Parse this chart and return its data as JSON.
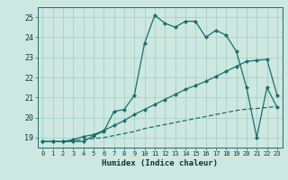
{
  "xlabel": "Humidex (Indice chaleur)",
  "bg_color": "#cde8e0",
  "grid_color": "#a8cfc7",
  "line_color": "#1a6e6e",
  "xlim": [
    -0.5,
    23.5
  ],
  "ylim": [
    18.5,
    25.5
  ],
  "yticks": [
    19,
    20,
    21,
    22,
    23,
    24,
    25
  ],
  "xticks": [
    0,
    1,
    2,
    3,
    4,
    5,
    6,
    7,
    8,
    9,
    10,
    11,
    12,
    13,
    14,
    15,
    16,
    17,
    18,
    19,
    20,
    21,
    22,
    23
  ],
  "line1_x": [
    0,
    1,
    2,
    3,
    4,
    5,
    6,
    7,
    8,
    9,
    10,
    11,
    12,
    13,
    14,
    15,
    16,
    17,
    18,
    19,
    20,
    21,
    22,
    23
  ],
  "line1_y": [
    18.8,
    18.8,
    18.8,
    18.8,
    18.8,
    19.1,
    19.3,
    20.3,
    20.4,
    21.1,
    23.7,
    25.1,
    24.7,
    24.5,
    24.8,
    24.8,
    24.0,
    24.35,
    24.1,
    23.3,
    21.5,
    19.0,
    21.5,
    20.5
  ],
  "line2_x": [
    0,
    1,
    2,
    3,
    4,
    5,
    6,
    7,
    8,
    9,
    10,
    11,
    12,
    13,
    14,
    15,
    16,
    17,
    18,
    19,
    20,
    21,
    22,
    23
  ],
  "line2_y": [
    18.8,
    18.8,
    18.8,
    18.9,
    19.05,
    19.15,
    19.35,
    19.6,
    19.85,
    20.15,
    20.4,
    20.65,
    20.9,
    21.15,
    21.4,
    21.6,
    21.8,
    22.05,
    22.3,
    22.55,
    22.8,
    22.85,
    22.9,
    21.1
  ],
  "line3_x": [
    0,
    1,
    2,
    3,
    4,
    5,
    6,
    7,
    8,
    9,
    10,
    11,
    12,
    13,
    14,
    15,
    16,
    17,
    18,
    19,
    20,
    21,
    22,
    23
  ],
  "line3_y": [
    18.8,
    18.8,
    18.8,
    18.85,
    18.9,
    18.95,
    19.0,
    19.1,
    19.2,
    19.3,
    19.45,
    19.55,
    19.65,
    19.75,
    19.85,
    19.95,
    20.05,
    20.15,
    20.25,
    20.35,
    20.42,
    20.45,
    20.5,
    20.55
  ]
}
